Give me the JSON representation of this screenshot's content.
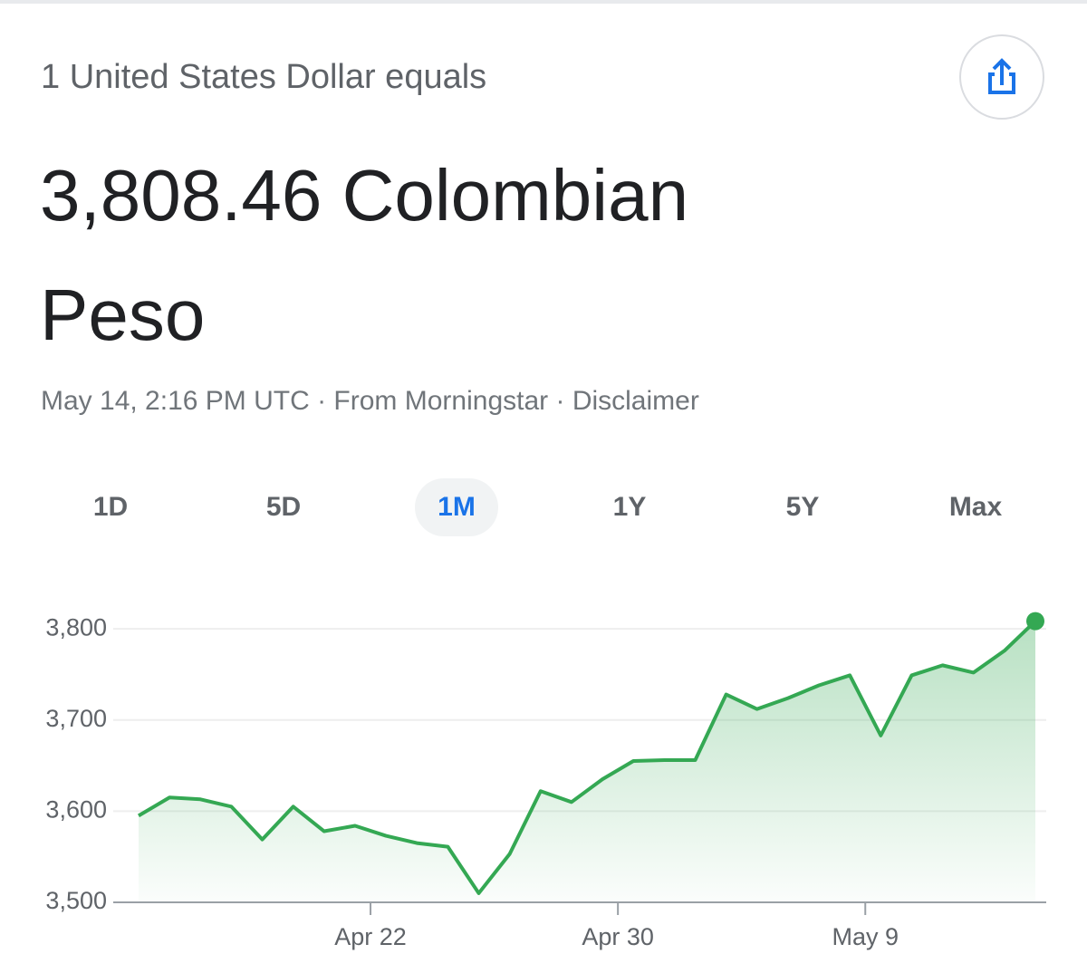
{
  "header": {
    "subtitle": "1 United States Dollar equals",
    "value": "3,808.46 Colombian Peso",
    "meta": "May 14, 2:16 PM UTC · From Morningstar · ",
    "disclaimer": "Disclaimer"
  },
  "tabs": {
    "labels": [
      "1D",
      "5D",
      "1M",
      "1Y",
      "5Y",
      "Max"
    ],
    "selected": 2
  },
  "chart_data": {
    "type": "line",
    "color": "#34a853",
    "grid": true,
    "area": true,
    "values": [
      3595,
      3615,
      3613,
      3605,
      3569,
      3605,
      3578,
      3584,
      3573,
      3565,
      3561,
      3510,
      3553,
      3622,
      3610,
      3635,
      3655,
      3656,
      3656,
      3728,
      3712,
      3724,
      3738,
      3749,
      3683,
      3749,
      3760,
      3752,
      3776,
      3808.46
    ],
    "xlim": [
      0,
      29
    ],
    "xticks": [
      {
        "value": 7.5,
        "label": "Apr 22"
      },
      {
        "value": 15.5,
        "label": "Apr 30"
      },
      {
        "value": 23.5,
        "label": "May 9"
      }
    ],
    "ylim": [
      3500,
      3820
    ],
    "yticks": [
      {
        "value": 3500,
        "label": "3,500"
      },
      {
        "value": 3600,
        "label": "3,600"
      },
      {
        "value": 3700,
        "label": "3,700"
      },
      {
        "value": 3800,
        "label": "3,800"
      }
    ]
  }
}
